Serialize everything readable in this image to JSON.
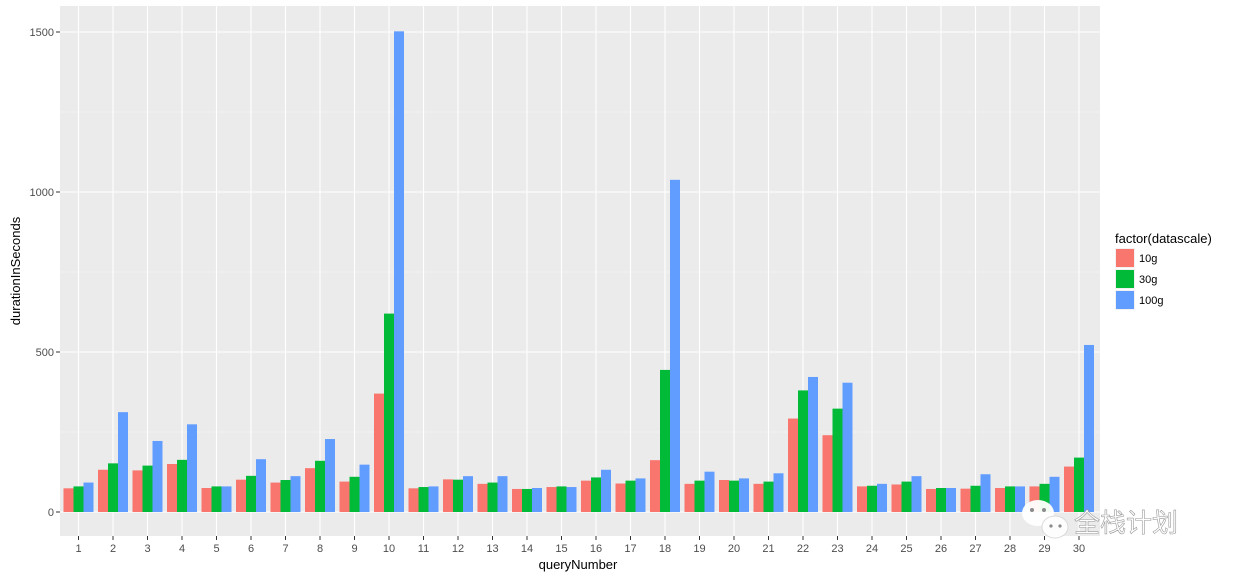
{
  "chart_data": {
    "type": "bar",
    "xlabel": "queryNumber",
    "ylabel": "durationInSeconds",
    "ylim": [
      0,
      1500
    ],
    "yticks": [
      0,
      500,
      1000,
      1500
    ],
    "grid": true,
    "legend_position": "right",
    "legend_title": "factor(datascale)",
    "categories": [
      "1",
      "2",
      "3",
      "4",
      "5",
      "6",
      "7",
      "8",
      "9",
      "10",
      "11",
      "12",
      "13",
      "14",
      "15",
      "16",
      "17",
      "18",
      "19",
      "20",
      "21",
      "22",
      "23",
      "24",
      "25",
      "26",
      "27",
      "28",
      "29",
      "30"
    ],
    "series": [
      {
        "name": "10g",
        "color": "#F8766D",
        "values": [
          74,
          132,
          130,
          150,
          75,
          101,
          92,
          137,
          95,
          370,
          74,
          102,
          88,
          72,
          78,
          98,
          89,
          162,
          88,
          100,
          88,
          292,
          240,
          80,
          86,
          72,
          73,
          75,
          80,
          142
        ]
      },
      {
        "name": "30g",
        "color": "#00BA38",
        "values": [
          80,
          152,
          145,
          163,
          80,
          113,
          100,
          160,
          110,
          620,
          78,
          101,
          92,
          72,
          80,
          108,
          98,
          444,
          98,
          98,
          95,
          380,
          323,
          82,
          95,
          75,
          82,
          80,
          88,
          170
        ]
      },
      {
        "name": "100g",
        "color": "#619CFF",
        "values": [
          92,
          312,
          222,
          274,
          80,
          165,
          112,
          228,
          148,
          1502,
          80,
          112,
          112,
          75,
          78,
          132,
          105,
          1038,
          126,
          105,
          121,
          422,
          404,
          88,
          112,
          75,
          118,
          80,
          110,
          522
        ]
      }
    ]
  },
  "watermark": {
    "text": "全栈计划",
    "icon": "wechat-icon"
  }
}
